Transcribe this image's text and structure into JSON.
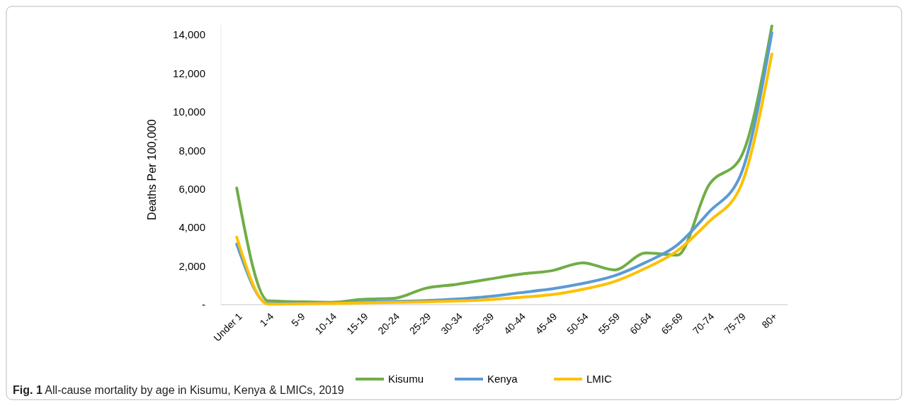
{
  "chart_data": {
    "type": "line",
    "ylabel": "Deaths Per 100,000",
    "categories": [
      "Under 1",
      "1-4",
      "5-9",
      "10-14",
      "15-19",
      "20-24",
      "25-29",
      "30-34",
      "35-39",
      "40-44",
      "45-49",
      "50-54",
      "55-59",
      "60-64",
      "65-69",
      "70-74",
      "75-79",
      "80+"
    ],
    "series": [
      {
        "name": "Kisumu",
        "color": "#70ad47",
        "values": [
          6050,
          200,
          150,
          120,
          280,
          330,
          850,
          1060,
          1320,
          1580,
          1760,
          2170,
          1800,
          2680,
          2570,
          6200,
          7600,
          14450
        ]
      },
      {
        "name": "Kenya",
        "color": "#5b9bd5",
        "values": [
          3150,
          60,
          80,
          100,
          140,
          170,
          210,
          290,
          420,
          620,
          820,
          1100,
          1500,
          2200,
          3100,
          4800,
          6700,
          14100
        ]
      },
      {
        "name": "LMIC",
        "color": "#ffc000",
        "values": [
          3500,
          30,
          50,
          60,
          90,
          120,
          150,
          190,
          260,
          380,
          520,
          800,
          1200,
          1900,
          2800,
          4300,
          6100,
          13000
        ]
      }
    ],
    "ylim": [
      0,
      14500
    ],
    "yticks": [
      {
        "value": 0,
        "label": "-"
      },
      {
        "value": 2000,
        "label": "2,000"
      },
      {
        "value": 4000,
        "label": "4,000"
      },
      {
        "value": 6000,
        "label": "6,000"
      },
      {
        "value": 8000,
        "label": "8,000"
      },
      {
        "value": 10000,
        "label": "10,000"
      },
      {
        "value": 12000,
        "label": "12,000"
      },
      {
        "value": 14000,
        "label": "14,000"
      }
    ],
    "grid": false,
    "legend": "bottom",
    "annotations": [
      "Fig. 1  All-cause mortality by age in Kisumu, Kenya & LMICs, 2019"
    ]
  }
}
